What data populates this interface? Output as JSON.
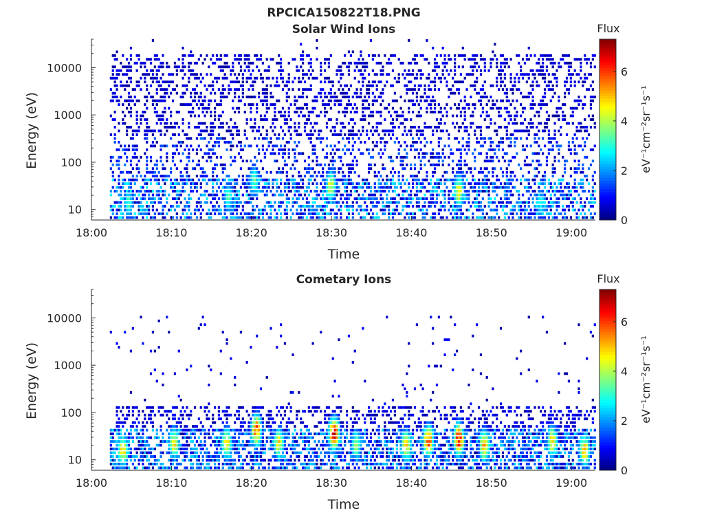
{
  "figure": {
    "title": "RPCICA150822T18.PNG"
  },
  "chart_data": [
    {
      "type": "heatmap",
      "title": "Solar Wind Ions",
      "xlabel": "Time",
      "ylabel": "Energy (eV)",
      "x_ticks": [
        "18:00",
        "18:10",
        "18:20",
        "18:30",
        "18:40",
        "18:50",
        "19:00"
      ],
      "x_range_minutes": [
        0,
        63
      ],
      "data_x_range_minutes": [
        2.3,
        63
      ],
      "y_scale": "log",
      "y_ticks": [
        10,
        100,
        1000,
        10000
      ],
      "y_tick_labels": [
        "10",
        "100",
        "1000",
        "10000"
      ],
      "y_range": [
        6,
        40000
      ],
      "colorbar": {
        "title": "Flux",
        "label": "eV⁻¹cm⁻²sr⁻¹s⁻¹",
        "range": [
          0,
          7.3
        ],
        "ticks": [
          0,
          2,
          4,
          6
        ],
        "colormap": "jet"
      },
      "description_of_values": "Sparse noise across 10–20000 eV; densest at low energy (6–40 eV) with flux mostly 1–3, peaks ~4–5 near 18:30, 18:45.",
      "hotspots": [
        {
          "time_min": 29.8,
          "energy": 28,
          "value": 4.6
        },
        {
          "time_min": 45.8,
          "energy": 22,
          "value": 4.8
        },
        {
          "time_min": 20.2,
          "energy": 35,
          "value": 3.6
        },
        {
          "time_min": 4.5,
          "energy": 12,
          "value": 3.2
        },
        {
          "time_min": 17.0,
          "energy": 16,
          "value": 3.3
        },
        {
          "time_min": 56.0,
          "energy": 12,
          "value": 3.0
        }
      ]
    },
    {
      "type": "heatmap",
      "title": "Cometary Ions",
      "xlabel": "Time",
      "ylabel": "Energy (eV)",
      "x_ticks": [
        "18:00",
        "18:10",
        "18:20",
        "18:30",
        "18:40",
        "18:50",
        "19:00"
      ],
      "x_range_minutes": [
        0,
        63
      ],
      "data_x_range_minutes": [
        2.3,
        63
      ],
      "y_scale": "log",
      "y_ticks": [
        10,
        100,
        1000,
        10000
      ],
      "y_tick_labels": [
        "10",
        "100",
        "1000",
        "10000"
      ],
      "y_range": [
        6,
        40000
      ],
      "colorbar": {
        "title": "Flux",
        "label": "eV⁻¹cm⁻²sr⁻¹s⁻¹",
        "range": [
          0,
          7.3
        ],
        "ticks": [
          0,
          2,
          4,
          6
        ],
        "colormap": "jet"
      },
      "description_of_values": "Band of counts below ~130 eV; intense bursts (flux 5–7) at 15–40 eV recurring every ~3–4 minutes; sparse points up to 10000 eV.",
      "hotspots": [
        {
          "time_min": 3.8,
          "energy": 14,
          "value": 5.2
        },
        {
          "time_min": 10.2,
          "energy": 20,
          "value": 4.8
        },
        {
          "time_min": 16.8,
          "energy": 20,
          "value": 5.0
        },
        {
          "time_min": 20.5,
          "energy": 38,
          "value": 6.0
        },
        {
          "time_min": 23.3,
          "energy": 20,
          "value": 5.0
        },
        {
          "time_min": 30.2,
          "energy": 32,
          "value": 6.8
        },
        {
          "time_min": 33.0,
          "energy": 18,
          "value": 4.0
        },
        {
          "time_min": 39.2,
          "energy": 18,
          "value": 5.0
        },
        {
          "time_min": 42.0,
          "energy": 22,
          "value": 6.2
        },
        {
          "time_min": 45.8,
          "energy": 24,
          "value": 6.8
        },
        {
          "time_min": 49.0,
          "energy": 18,
          "value": 5.4
        },
        {
          "time_min": 57.5,
          "energy": 22,
          "value": 5.0
        },
        {
          "time_min": 61.5,
          "energy": 14,
          "value": 5.2
        }
      ]
    }
  ]
}
